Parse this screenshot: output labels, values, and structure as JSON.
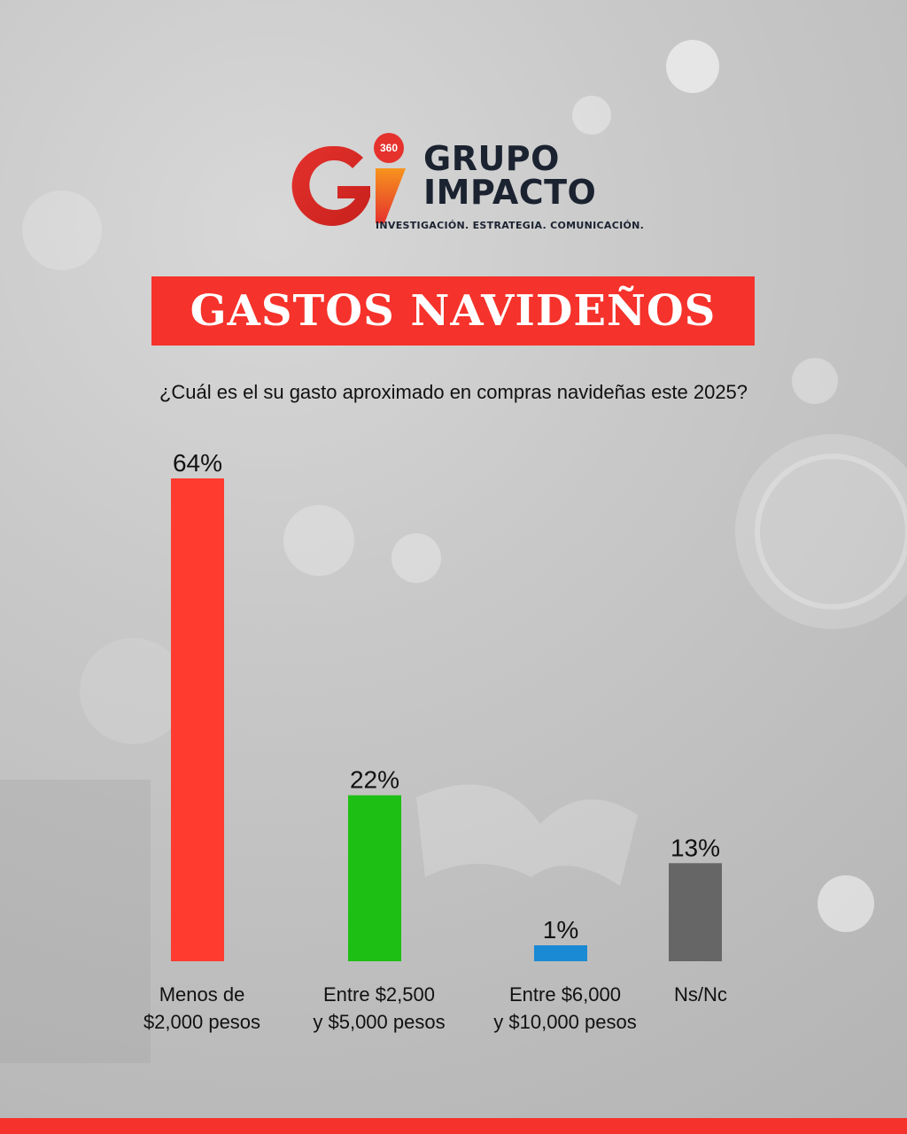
{
  "brand": {
    "badge": "360",
    "name_line1": "GRUPO",
    "name_line2": "IMPACTO",
    "tagline": "INVESTIGACIÓN. ESTRATEGIA. COMUNICACIÓN.",
    "color_red": "#e5322d",
    "color_orange": "#f7941d",
    "color_dark": "#1b2230"
  },
  "chart_data": {
    "type": "bar",
    "title": "GASTOS NAVIDEÑOS",
    "subtitle": "¿Cuál es el su gasto aproximado en compras navideñas este 2025?",
    "categories": [
      [
        "Menos de",
        "$2,000 pesos"
      ],
      [
        "Entre $2,500",
        "y $5,000 pesos"
      ],
      [
        "Entre $6,000",
        "y $10,000 pesos"
      ],
      [
        "Ns/Nc"
      ]
    ],
    "values": [
      64,
      22,
      1,
      13
    ],
    "value_labels": [
      "64%",
      "22%",
      "1%",
      "13%"
    ],
    "colors": [
      "#ff3a2f",
      "#1dbf14",
      "#1a8ad4",
      "#666666"
    ],
    "unit": "%",
    "ylim": [
      0,
      64
    ],
    "grid": false,
    "legend": "none"
  },
  "accent_color": "#f5322b"
}
